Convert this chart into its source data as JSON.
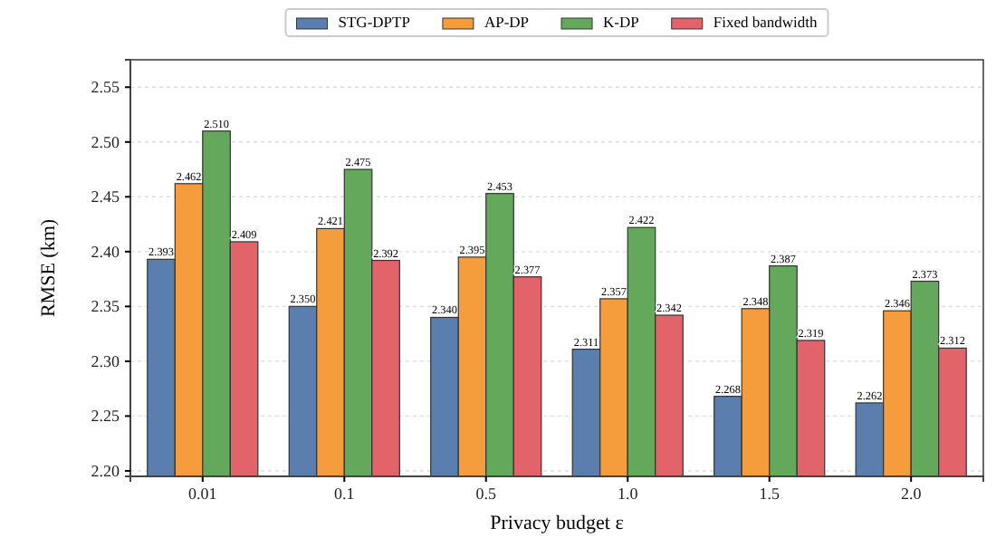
{
  "chart_data": {
    "type": "bar",
    "xlabel": "Privacy budget ε",
    "ylabel": "RMSE (km)",
    "categories": [
      "0.01",
      "0.1",
      "0.5",
      "1.0",
      "1.5",
      "2.0"
    ],
    "series": [
      {
        "name": "STG-DPTP",
        "color": "#5a7fae",
        "values": [
          2.393,
          2.35,
          2.34,
          2.311,
          2.268,
          2.262
        ],
        "value_labels": [
          "2.393",
          "2.350",
          "2.340",
          "2.311",
          "2.268",
          "2.262"
        ]
      },
      {
        "name": "AP-DP",
        "color": "#f59c3c",
        "values": [
          2.462,
          2.421,
          2.395,
          2.357,
          2.348,
          2.346
        ],
        "value_labels": [
          "2.462",
          "2.421",
          "2.395",
          "2.357",
          "2.348",
          "2.346"
        ]
      },
      {
        "name": "K-DP",
        "color": "#64a85c",
        "values": [
          2.51,
          2.475,
          2.453,
          2.422,
          2.387,
          2.373
        ],
        "value_labels": [
          "2.510",
          "2.475",
          "2.453",
          "2.422",
          "2.387",
          "2.373"
        ]
      },
      {
        "name": "Fixed bandwidth",
        "color": "#e3636b",
        "values": [
          2.409,
          2.392,
          2.377,
          2.342,
          2.319,
          2.312
        ],
        "value_labels": [
          "2.409",
          "2.392",
          "2.377",
          "2.342",
          "2.319",
          "2.312"
        ]
      }
    ],
    "ylim": [
      2.195,
      2.575
    ],
    "yticks": [
      {
        "value": 2.2,
        "label": "2.20"
      },
      {
        "value": 2.25,
        "label": "2.25"
      },
      {
        "value": 2.3,
        "label": "2.30"
      },
      {
        "value": 2.35,
        "label": "2.35"
      },
      {
        "value": 2.4,
        "label": "2.40"
      },
      {
        "value": 2.45,
        "label": "2.45"
      },
      {
        "value": 2.5,
        "label": "2.50"
      },
      {
        "value": 2.55,
        "label": "2.55"
      }
    ],
    "grid": "y",
    "legend": "top"
  }
}
